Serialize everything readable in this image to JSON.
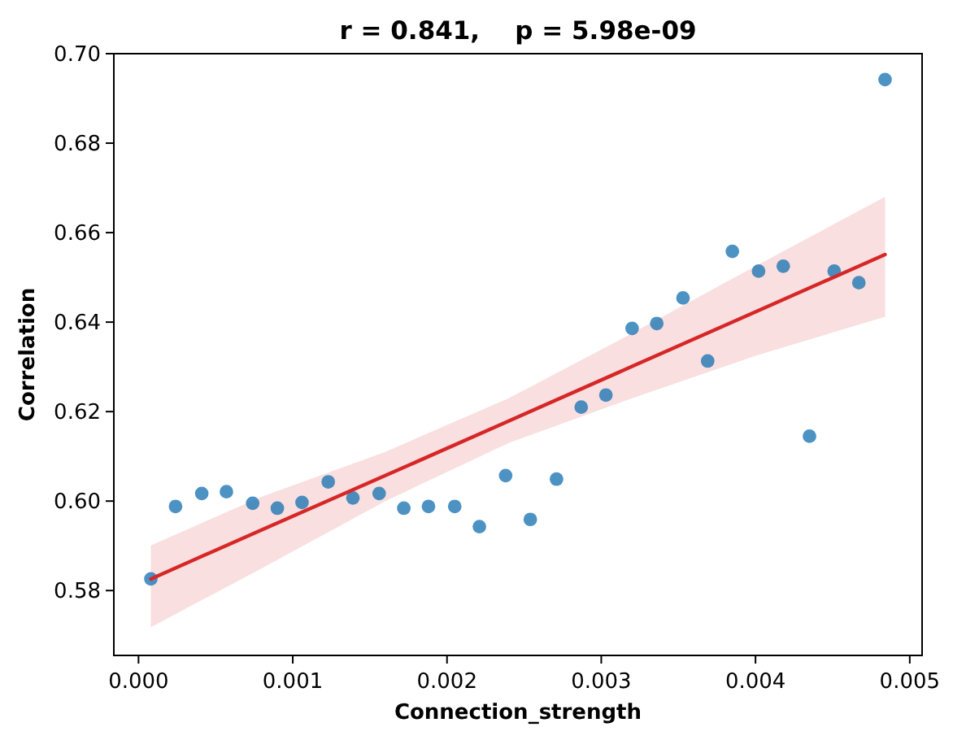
{
  "chart_data": {
    "type": "scatter",
    "title": "r = 0.841,    p = 5.98e-09",
    "xlabel": "Connection_strength",
    "ylabel": "Correlation",
    "x": [
      8e-05,
      0.00024,
      0.00041,
      0.00057,
      0.00074,
      0.0009,
      0.00106,
      0.00123,
      0.00139,
      0.00156,
      0.00172,
      0.00188,
      0.00205,
      0.00221,
      0.00238,
      0.00254,
      0.00271,
      0.00287,
      0.00303,
      0.0032,
      0.00336,
      0.00353,
      0.00369,
      0.00385,
      0.00402,
      0.00418,
      0.00435,
      0.00451,
      0.00467,
      0.00484
    ],
    "series": [
      {
        "color": "#1f77b4",
        "marker": "circle",
        "values": [
          0.5826,
          0.5988,
          0.6017,
          0.6021,
          0.5995,
          0.5984,
          0.5997,
          0.6043,
          0.6007,
          0.6017,
          0.5984,
          0.5988,
          0.5988,
          0.5943,
          0.6057,
          0.5959,
          0.6049,
          0.621,
          0.6237,
          0.6386,
          0.6397,
          0.6454,
          0.6313,
          0.6558,
          0.6514,
          0.6525,
          0.6145,
          0.6514,
          0.6488,
          0.6942
        ]
      },
      {
        "type": "line",
        "color": "#d62728",
        "marker": "none",
        "x": [
          8e-05,
          0.0008,
          0.0016,
          0.0024,
          0.0032,
          0.004,
          0.00484
        ],
        "values": [
          0.5826,
          0.5936,
          0.6057,
          0.6179,
          0.6301,
          0.6423,
          0.6551
        ],
        "lower": [
          0.5718,
          0.585,
          0.6,
          0.613,
          0.623,
          0.6325,
          0.6412
        ],
        "upper": [
          0.5901,
          0.601,
          0.611,
          0.623,
          0.6375,
          0.6525,
          0.668
        ]
      }
    ],
    "xlim": [
      -0.00016,
      0.00508
    ],
    "ylim": [
      0.5655,
      0.7
    ],
    "xticks": [
      {
        "value": 0,
        "label": "0.000"
      },
      0.001,
      0.002,
      0.003,
      0.004,
      0.005
    ],
    "yticks": [
      0.58,
      {
        "value": 0.6,
        "label": "0.60"
      },
      0.62,
      0.64,
      0.66,
      0.68,
      {
        "value": 0.7,
        "label": "0.70"
      }
    ]
  }
}
